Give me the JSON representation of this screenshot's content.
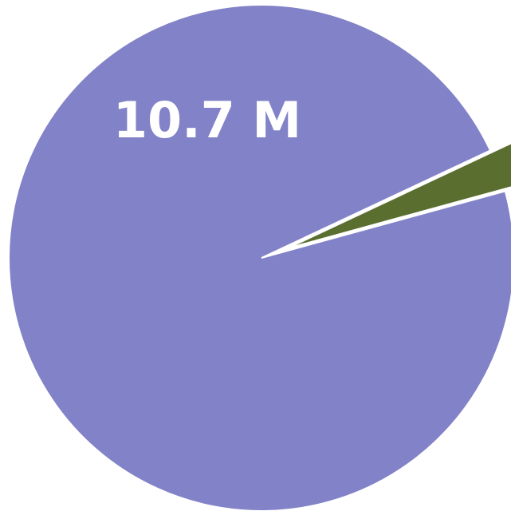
{
  "chart_data": {
    "type": "pie",
    "title": "",
    "slices": [
      {
        "value": 10.7,
        "display_label": "10.7 M",
        "color": "#8282c8",
        "exploded": false
      },
      {
        "value": 0.3,
        "display_label": "",
        "color": "#5a6e30",
        "exploded": true
      }
    ],
    "unit": "M",
    "legend": "none"
  }
}
